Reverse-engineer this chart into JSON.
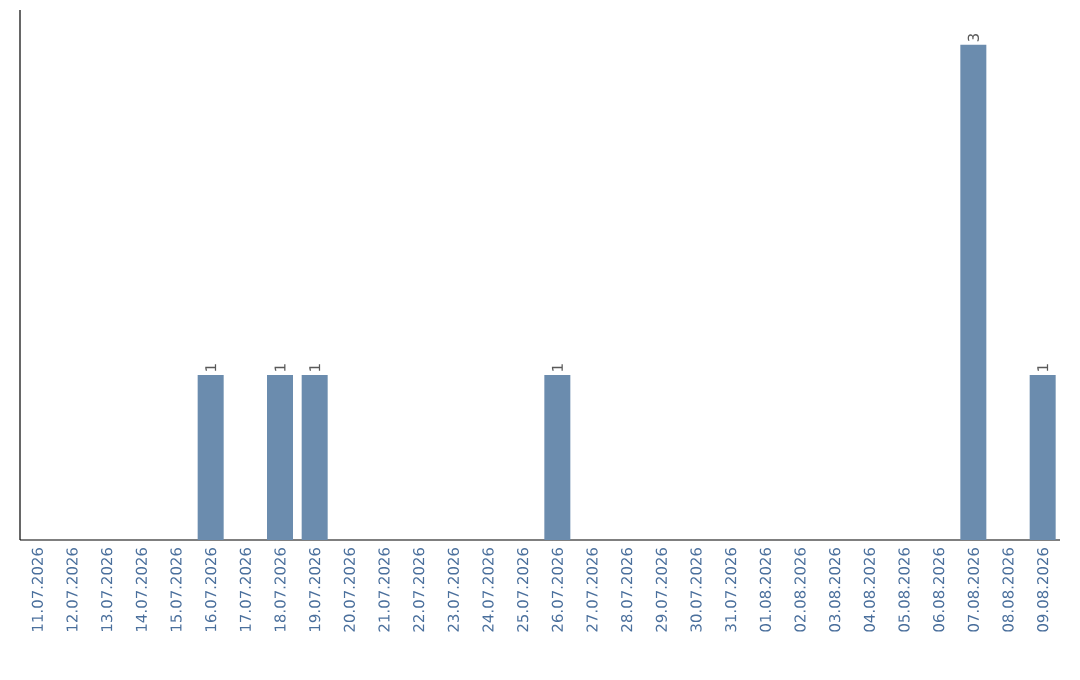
{
  "chart_data": {
    "type": "bar",
    "categories": [
      "11.07.2026",
      "12.07.2026",
      "13.07.2026",
      "14.07.2026",
      "15.07.2026",
      "16.07.2026",
      "17.07.2026",
      "18.07.2026",
      "19.07.2026",
      "20.07.2026",
      "21.07.2026",
      "22.07.2026",
      "23.07.2026",
      "24.07.2026",
      "25.07.2026",
      "26.07.2026",
      "27.07.2026",
      "28.07.2026",
      "29.07.2026",
      "30.07.2026",
      "31.07.2026",
      "01.08.2026",
      "02.08.2026",
      "03.08.2026",
      "04.08.2026",
      "05.08.2026",
      "06.08.2026",
      "07.08.2026",
      "08.08.2026",
      "09.08.2026"
    ],
    "values": [
      0,
      0,
      0,
      0,
      0,
      1,
      0,
      1,
      1,
      0,
      0,
      0,
      0,
      0,
      0,
      1,
      0,
      0,
      0,
      0,
      0,
      0,
      0,
      0,
      0,
      0,
      0,
      3,
      0,
      1
    ],
    "value_labels": [
      null,
      null,
      null,
      null,
      null,
      "1",
      null,
      "1",
      "1",
      null,
      null,
      null,
      null,
      null,
      null,
      "1",
      null,
      null,
      null,
      null,
      null,
      null,
      null,
      null,
      null,
      null,
      null,
      "3",
      null,
      "1"
    ],
    "color": "#6b8cae",
    "tick_labels": "x"
  }
}
